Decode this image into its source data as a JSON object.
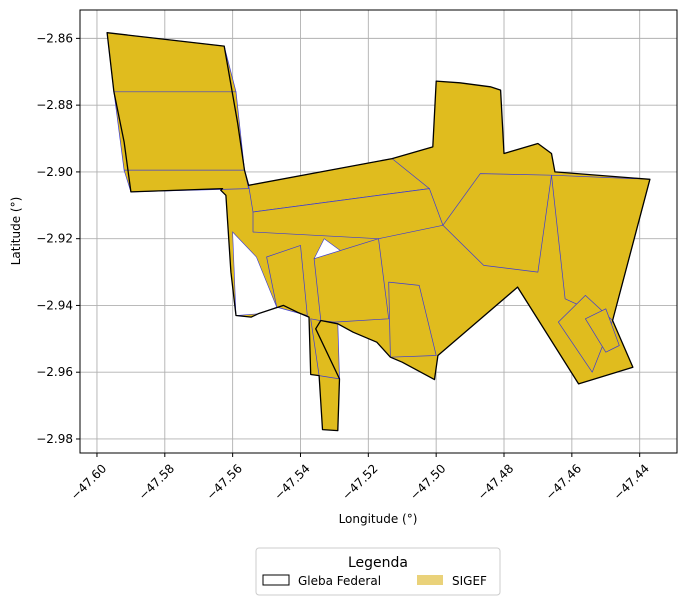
{
  "chart_data": {
    "type": "map",
    "xlabel": "Longitude (°)",
    "ylabel": "Latitude (°)",
    "xlim": [
      -47.605,
      -47.429
    ],
    "ylim": [
      -2.9842,
      -2.8515
    ],
    "grid": true,
    "x_ticks": [
      -47.6,
      -47.58,
      -47.56,
      -47.54,
      -47.52,
      -47.5,
      -47.48,
      -47.46,
      -47.44
    ],
    "x_tick_labels": [
      "−47.60",
      "−47.58",
      "−47.56",
      "−47.54",
      "−47.52",
      "−47.50",
      "−47.48",
      "−47.46",
      "−47.44"
    ],
    "y_ticks": [
      -2.86,
      -2.88,
      -2.9,
      -2.92,
      -2.94,
      -2.96,
      -2.98
    ],
    "y_tick_labels": [
      "−2.86",
      "−2.88",
      "−2.90",
      "−2.92",
      "−2.94",
      "−2.96",
      "−2.98"
    ],
    "colors": {
      "sigef_fill": "#e0bc1e",
      "sigef_edge": "#3b3bd6",
      "gleba_edge": "#000000",
      "legend_sigef": "#ead27a",
      "grid": "#b0b0b0"
    },
    "legend": {
      "title": "Legenda",
      "placement": "lower-center",
      "entries": [
        {
          "label": "Gleba Federal",
          "style": "outline"
        },
        {
          "label": "SIGEF",
          "style": "fill"
        }
      ]
    },
    "gleba_outline": [
      [
        -47.597,
        -2.8583
      ],
      [
        -47.5625,
        -2.8623
      ],
      [
        -47.5585,
        -2.8855
      ],
      [
        -47.5565,
        -2.8995
      ],
      [
        -47.5553,
        -2.904
      ],
      [
        -47.513,
        -2.896
      ],
      [
        -47.501,
        -2.8925
      ],
      [
        -47.5,
        -2.8728
      ],
      [
        -47.493,
        -2.8733
      ],
      [
        -47.484,
        -2.8745
      ],
      [
        -47.481,
        -2.8755
      ],
      [
        -47.48,
        -2.8945
      ],
      [
        -47.47,
        -2.8915
      ],
      [
        -47.466,
        -2.8945
      ],
      [
        -47.465,
        -2.9
      ],
      [
        -47.437,
        -2.9022
      ],
      [
        -47.448,
        -2.9445
      ],
      [
        -47.442,
        -2.9585
      ],
      [
        -47.458,
        -2.9635
      ],
      [
        -47.476,
        -2.9345
      ],
      [
        -47.4995,
        -2.955
      ],
      [
        -47.5005,
        -2.9622
      ],
      [
        -47.51,
        -2.957
      ],
      [
        -47.5135,
        -2.9555
      ],
      [
        -47.5175,
        -2.951
      ],
      [
        -47.5245,
        -2.948
      ],
      [
        -47.529,
        -2.9455
      ],
      [
        -47.534,
        -2.9445
      ],
      [
        -47.5355,
        -2.947
      ],
      [
        -47.5285,
        -2.962
      ],
      [
        -47.529,
        -2.9775
      ],
      [
        -47.5335,
        -2.9772
      ],
      [
        -47.5345,
        -2.961
      ],
      [
        -47.537,
        -2.9607
      ],
      [
        -47.5375,
        -2.9435
      ],
      [
        -47.541,
        -2.942
      ],
      [
        -47.545,
        -2.94
      ],
      [
        -47.548,
        -2.941
      ],
      [
        -47.5525,
        -2.9425
      ],
      [
        -47.5545,
        -2.9435
      ],
      [
        -47.559,
        -2.943
      ],
      [
        -47.5605,
        -2.93
      ],
      [
        -47.562,
        -2.907
      ],
      [
        -47.5635,
        -2.9055
      ],
      [
        -47.563,
        -2.905
      ],
      [
        -47.59,
        -2.906
      ],
      [
        -47.592,
        -2.891
      ],
      [
        -47.595,
        -2.876
      ]
    ],
    "sigef_parcels": [
      [
        [
          -47.597,
          -2.8583
        ],
        [
          -47.5625,
          -2.8623
        ],
        [
          -47.559,
          -2.876
        ],
        [
          -47.595,
          -2.876
        ]
      ],
      [
        [
          -47.595,
          -2.876
        ],
        [
          -47.559,
          -2.876
        ],
        [
          -47.5565,
          -2.8995
        ],
        [
          -47.592,
          -2.8995
        ]
      ],
      [
        [
          -47.592,
          -2.8995
        ],
        [
          -47.5565,
          -2.8995
        ],
        [
          -47.5553,
          -2.905
        ],
        [
          -47.59,
          -2.906
        ]
      ],
      [
        [
          -47.5553,
          -2.904
        ],
        [
          -47.513,
          -2.896
        ],
        [
          -47.502,
          -2.905
        ],
        [
          -47.554,
          -2.912
        ]
      ],
      [
        [
          -47.554,
          -2.912
        ],
        [
          -47.502,
          -2.905
        ],
        [
          -47.498,
          -2.916
        ],
        [
          -47.517,
          -2.92
        ],
        [
          -47.554,
          -2.918
        ]
      ],
      [
        [
          -47.55,
          -2.9255
        ],
        [
          -47.54,
          -2.922
        ],
        [
          -47.538,
          -2.943
        ],
        [
          -47.547,
          -2.9405
        ]
      ],
      [
        [
          -47.536,
          -2.926
        ],
        [
          -47.517,
          -2.92
        ],
        [
          -47.514,
          -2.944
        ],
        [
          -47.53,
          -2.945
        ],
        [
          -47.534,
          -2.9445
        ]
      ],
      [
        [
          -47.514,
          -2.933
        ],
        [
          -47.505,
          -2.934
        ],
        [
          -47.5,
          -2.955
        ],
        [
          -47.5135,
          -2.9555
        ]
      ],
      [
        [
          -47.498,
          -2.916
        ],
        [
          -47.487,
          -2.9005
        ],
        [
          -47.466,
          -2.901
        ],
        [
          -47.47,
          -2.93
        ],
        [
          -47.486,
          -2.928
        ]
      ],
      [
        [
          -47.466,
          -2.901
        ],
        [
          -47.437,
          -2.9022
        ],
        [
          -47.448,
          -2.9445
        ],
        [
          -47.462,
          -2.938
        ]
      ],
      [
        [
          -47.464,
          -2.945
        ],
        [
          -47.456,
          -2.937
        ],
        [
          -47.448,
          -2.9445
        ],
        [
          -47.454,
          -2.96
        ]
      ],
      [
        [
          -47.456,
          -2.944
        ],
        [
          -47.45,
          -2.941
        ],
        [
          -47.446,
          -2.952
        ],
        [
          -47.45,
          -2.954
        ]
      ],
      [
        [
          -47.537,
          -2.944
        ],
        [
          -47.529,
          -2.9455
        ],
        [
          -47.5285,
          -2.962
        ],
        [
          -47.5345,
          -2.961
        ]
      ]
    ],
    "white_gaps": [
      [
        [
          -47.56,
          -2.918
        ],
        [
          -47.553,
          -2.9255
        ],
        [
          -47.547,
          -2.9405
        ],
        [
          -47.5525,
          -2.9425
        ],
        [
          -47.559,
          -2.943
        ]
      ],
      [
        [
          -47.533,
          -2.92
        ],
        [
          -47.525,
          -2.926
        ],
        [
          -47.536,
          -2.926
        ]
      ]
    ]
  }
}
